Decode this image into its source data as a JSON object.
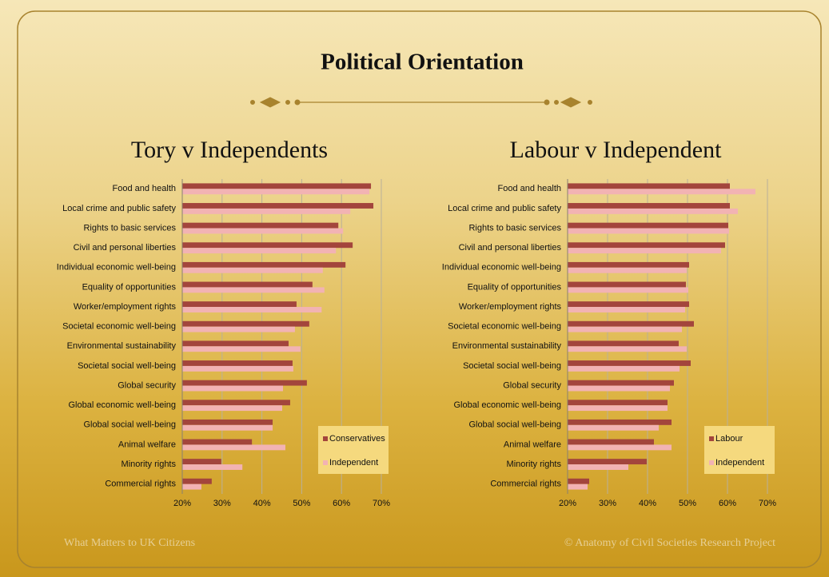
{
  "slide": {
    "title": "Political Orientation",
    "footer_left": "What Matters to UK Citizens",
    "footer_right": "© Anatomy of Civil Societies Research Project"
  },
  "chart_data": [
    {
      "type": "hbar",
      "title": "Tory v Independents",
      "categories": [
        "Food and health",
        "Local crime and public safety",
        "Rights to basic services",
        "Civil and personal liberties",
        "Individual economic well-being",
        "Equality of opportunities",
        "Worker/employment rights",
        "Societal economic well-being",
        "Environmental sustainability",
        "Societal social well-being",
        "Global security",
        "Global economic well-being",
        "Global social well-being",
        "Animal welfare",
        "Minority rights",
        "Commercial rights"
      ],
      "series": [
        {
          "name": "Conservatives",
          "color": "#a3453c",
          "values": [
            67.4,
            68,
            59.2,
            62.8,
            61,
            52.7,
            48.7,
            51.9,
            46.7,
            47.7,
            51.3,
            47.1,
            42.7,
            37.5,
            29.8,
            27.4
          ]
        },
        {
          "name": "Independent",
          "color": "#f2b3b3",
          "values": [
            67,
            62.2,
            60.4,
            58.6,
            55.3,
            55.7,
            55,
            48.3,
            49.7,
            47.9,
            45.3,
            45.1,
            42.7,
            45.9,
            35.1,
            24.8
          ]
        }
      ],
      "xlim": [
        20,
        70
      ],
      "xticks": [
        {
          "value": 20,
          "label": "20%"
        },
        {
          "value": 30,
          "label": "30%"
        },
        {
          "value": 40,
          "label": "40%"
        },
        {
          "value": 50,
          "label": "50%"
        },
        {
          "value": 60,
          "label": "60%"
        },
        {
          "value": 70,
          "label": "70%"
        }
      ],
      "grid": true,
      "legend": "lower right"
    },
    {
      "type": "hbar",
      "title": "Labour v Independent",
      "categories": [
        "Food and health",
        "Local crime and public safety",
        "Rights to basic services",
        "Civil and personal liberties",
        "Individual economic well-being",
        "Equality of opportunities",
        "Worker/employment rights",
        "Societal economic well-being",
        "Environmental sustainability",
        "Societal social well-being",
        "Global security",
        "Global economic well-being",
        "Global social well-being",
        "Animal welfare",
        "Minority rights",
        "Commercial rights"
      ],
      "series": [
        {
          "name": "Labour",
          "color": "#a3453c",
          "values": [
            60.6,
            60.6,
            60.2,
            59.4,
            50.4,
            49.6,
            50.4,
            51.6,
            47.8,
            50.8,
            46.6,
            45,
            46,
            41.6,
            39.8,
            25.4
          ]
        },
        {
          "name": "Independent",
          "color": "#f2b3b3",
          "values": [
            67,
            62.6,
            60.4,
            58.4,
            49.8,
            50.2,
            49.4,
            48.6,
            49.8,
            48,
            45.6,
            45,
            42.8,
            46,
            35.2,
            25
          ]
        }
      ],
      "xlim": [
        20,
        70
      ],
      "xticks": [
        {
          "value": 20,
          "label": "20%"
        },
        {
          "value": 30,
          "label": "30%"
        },
        {
          "value": 40,
          "label": "40%"
        },
        {
          "value": 50,
          "label": "50%"
        },
        {
          "value": 60,
          "label": "60%"
        },
        {
          "value": 70,
          "label": "70%"
        }
      ],
      "grid": true,
      "legend": "lower right"
    }
  ]
}
